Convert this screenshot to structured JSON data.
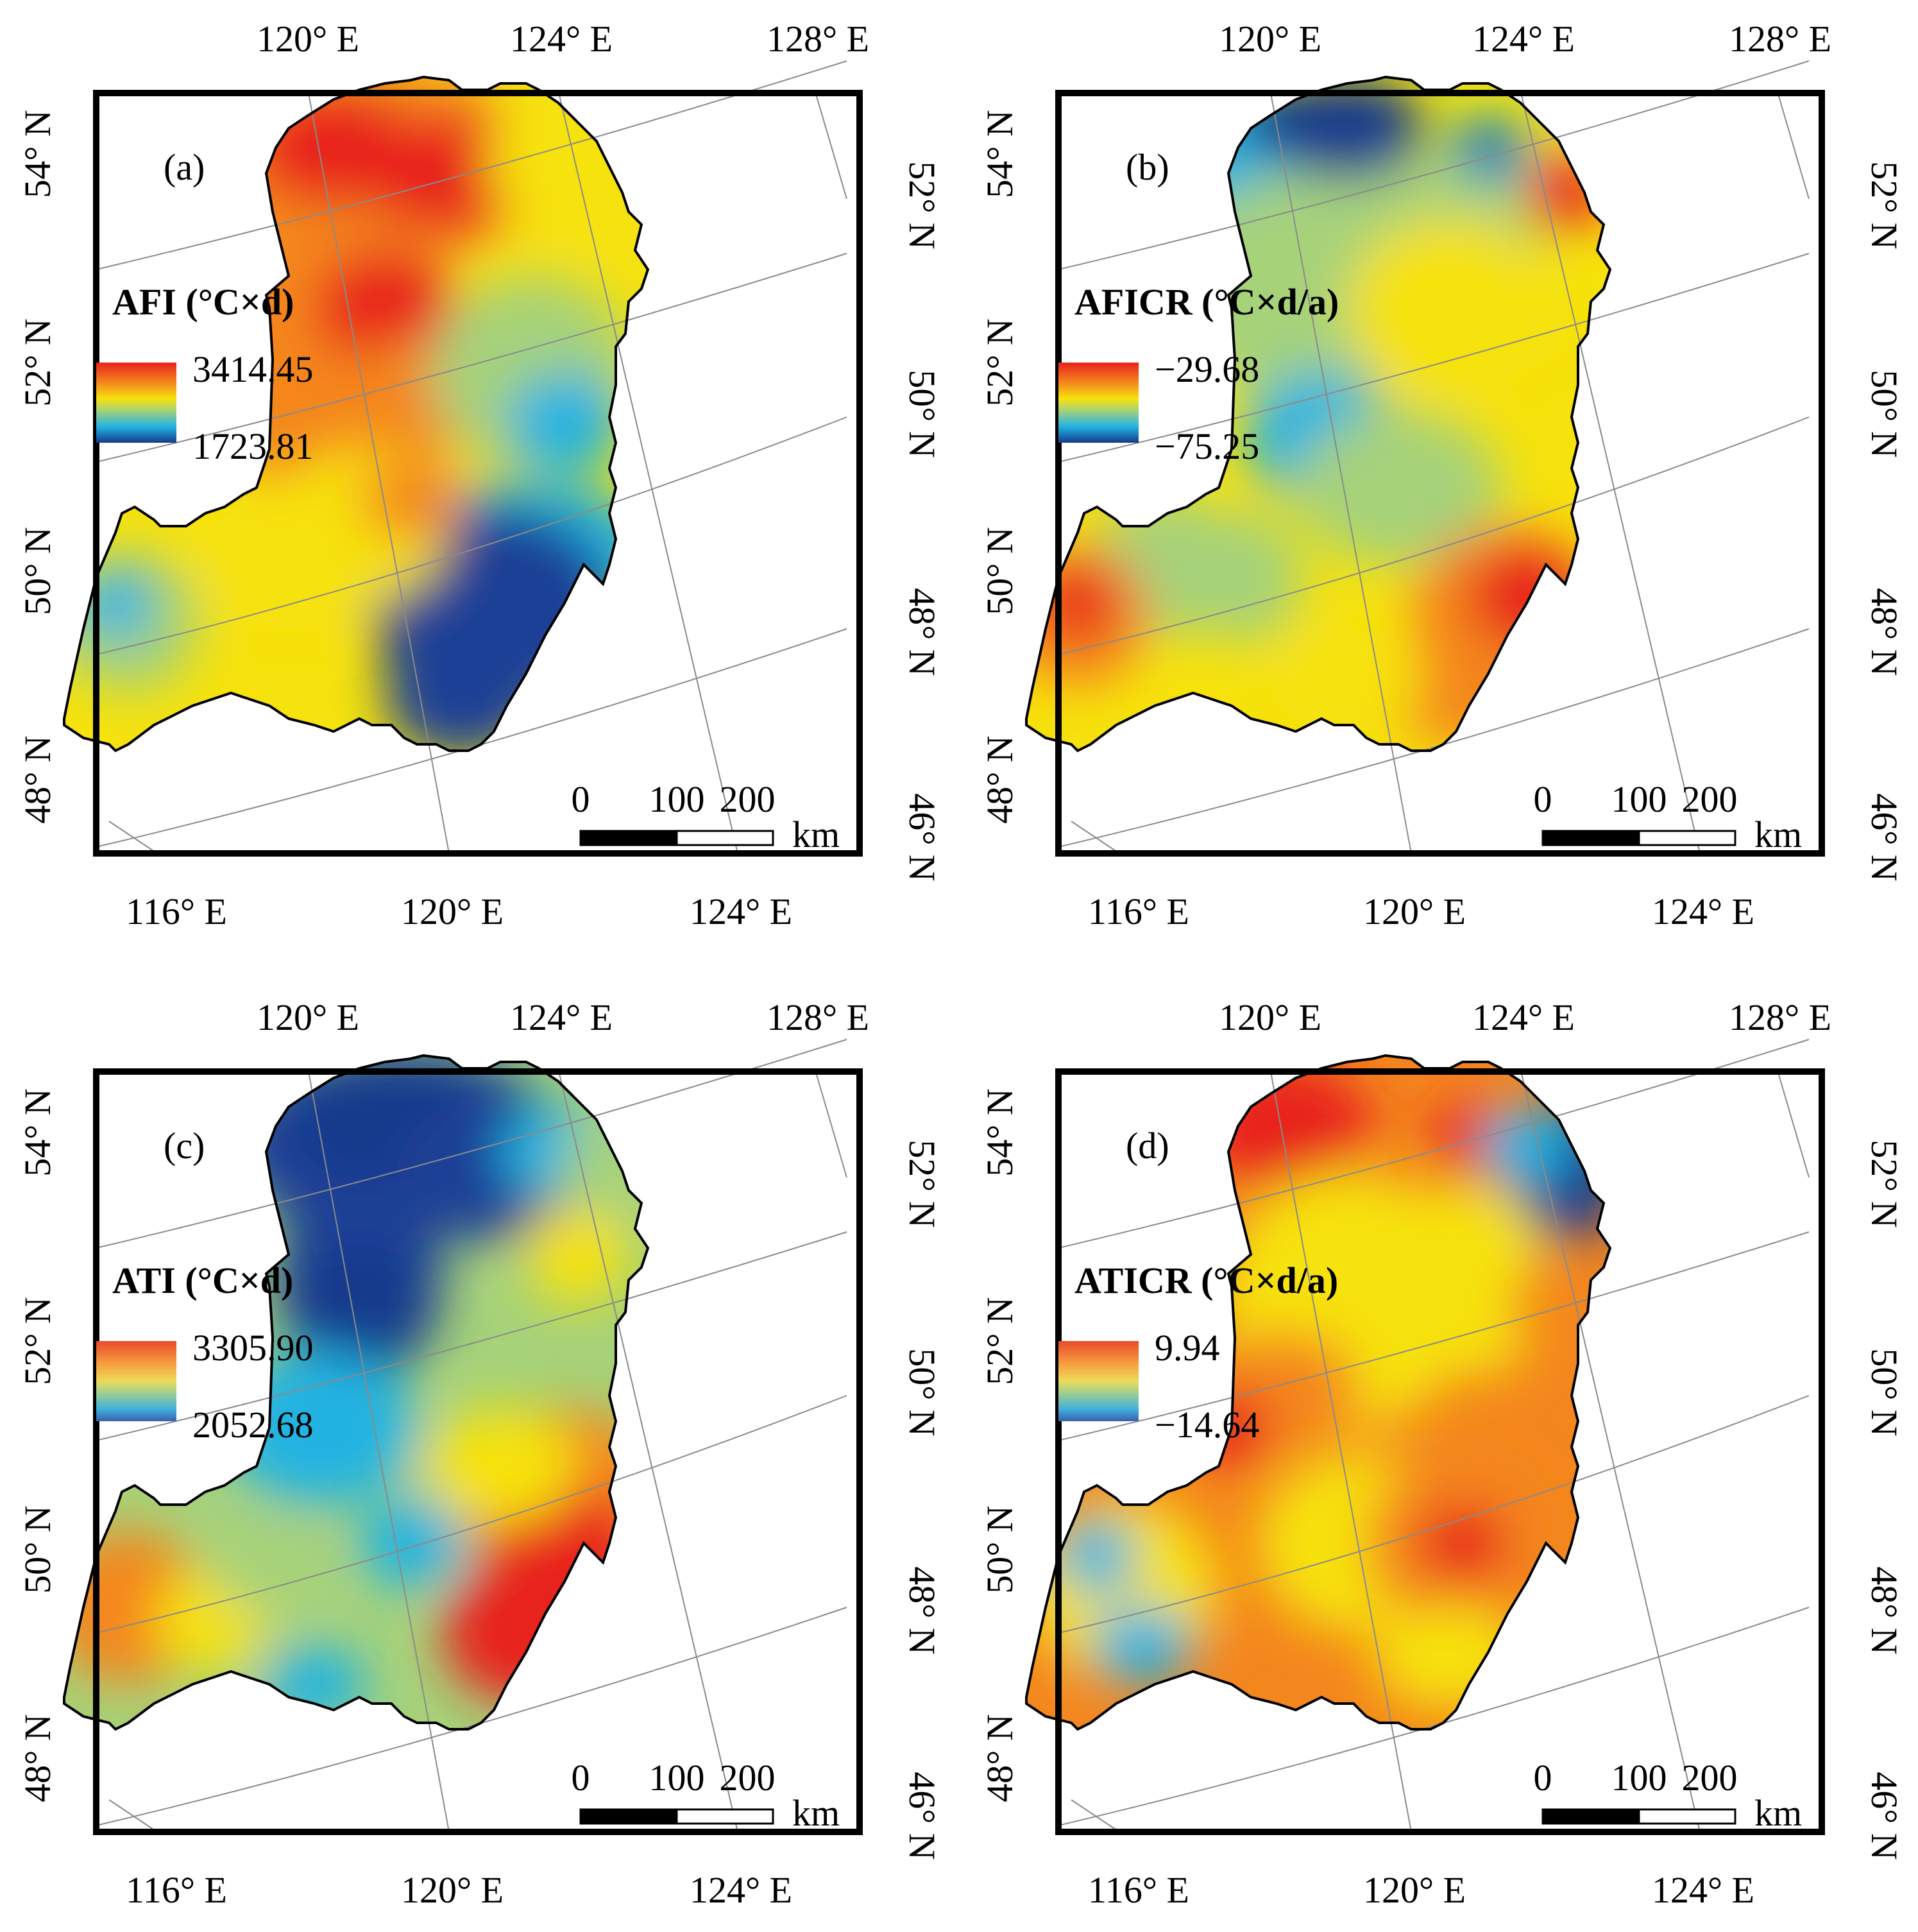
{
  "colors": {
    "frame": "#000000",
    "grid": "#8a8a8a",
    "red": "#e8231b",
    "orange": "#f4861e",
    "yellow": "#f6e20c",
    "green": "#a6d27a",
    "cyan": "#21b3e2",
    "blue": "#1c3f96",
    "darkblue": "#163a8c"
  },
  "panels": [
    {
      "label": "(a)",
      "legend_title": "AFI (°C×d)",
      "legend_max": "3414.45",
      "legend_min": "1723.81",
      "pattern": "afi",
      "top_ticks": [
        "120° E",
        "124° E",
        "128° E"
      ],
      "bottom_ticks": [
        "116° E",
        "120° E",
        "124° E"
      ],
      "left_ticks": [
        "54° N",
        "52° N",
        "50° N",
        "48° N"
      ],
      "right_ticks": [
        "52° N",
        "50° N",
        "48° N",
        "46° N"
      ],
      "scale_labels": [
        "0",
        "100",
        "200"
      ],
      "scale_unit": "km"
    },
    {
      "label": "(b)",
      "legend_title": "AFICR (°C×d/a)",
      "legend_max": "−29.68",
      "legend_min": "−75.25",
      "pattern": "aficr",
      "top_ticks": [
        "120° E",
        "124° E",
        "128° E"
      ],
      "bottom_ticks": [
        "116° E",
        "120° E",
        "124° E"
      ],
      "left_ticks": [
        "54° N",
        "52° N",
        "50° N",
        "48° N"
      ],
      "right_ticks": [
        "52° N",
        "50° N",
        "48° N",
        "46° N"
      ],
      "scale_labels": [
        "0",
        "100",
        "200"
      ],
      "scale_unit": "km"
    },
    {
      "label": "(c)",
      "legend_title": "ATI (°C×d)",
      "legend_max": "3305.90",
      "legend_min": "2052.68",
      "pattern": "ati",
      "top_ticks": [
        "120° E",
        "124° E",
        "128° E"
      ],
      "bottom_ticks": [
        "116° E",
        "120° E",
        "124° E"
      ],
      "left_ticks": [
        "54° N",
        "52° N",
        "50° N",
        "48° N"
      ],
      "right_ticks": [
        "52° N",
        "50° N",
        "48° N",
        "46° N"
      ],
      "scale_labels": [
        "0",
        "100",
        "200"
      ],
      "scale_unit": "km"
    },
    {
      "label": "(d)",
      "legend_title": "ATICR (°C×d/a)",
      "legend_max": "9.94",
      "legend_min": "−14.64",
      "pattern": "aticr",
      "top_ticks": [
        "120° E",
        "124° E",
        "128° E"
      ],
      "bottom_ticks": [
        "116° E",
        "120° E",
        "124° E"
      ],
      "left_ticks": [
        "54° N",
        "52° N",
        "50° N",
        "48° N"
      ],
      "right_ticks": [
        "52° N",
        "50° N",
        "48° N",
        "46° N"
      ],
      "scale_labels": [
        "0",
        "100",
        "200"
      ],
      "scale_unit": "km"
    }
  ]
}
